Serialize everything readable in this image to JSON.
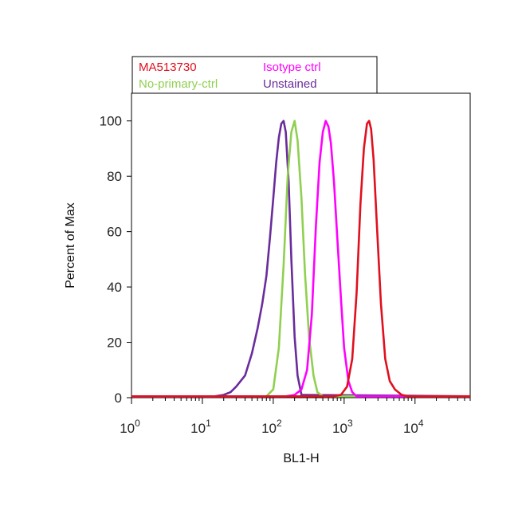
{
  "chart_data": {
    "type": "line",
    "xscale": "log",
    "xlim": [
      1,
      60000
    ],
    "ylim": [
      0,
      110
    ],
    "xlabel": "BL1-H",
    "ylabel": "Percent of Max",
    "legend_position": "top-left",
    "grid": false,
    "x_ticks": [
      {
        "value": 1,
        "base": "10",
        "exp": "0"
      },
      {
        "value": 10,
        "base": "10",
        "exp": "1"
      },
      {
        "value": 100,
        "base": "10",
        "exp": "2"
      },
      {
        "value": 1000,
        "base": "10",
        "exp": "3"
      },
      {
        "value": 10000,
        "base": "10",
        "exp": "4"
      }
    ],
    "y_ticks": [
      0,
      20,
      40,
      60,
      80,
      100
    ],
    "series": [
      {
        "name": "MA513730",
        "color": "#e0101e",
        "x": [
          1,
          700,
          900,
          1100,
          1300,
          1500,
          1700,
          1900,
          2100,
          2250,
          2400,
          2600,
          2900,
          3300,
          3800,
          4400,
          5200,
          6500,
          8000,
          60000
        ],
        "y": [
          0.5,
          0.5,
          1,
          4,
          14,
          38,
          70,
          90,
          99,
          100,
          97,
          86,
          62,
          34,
          14,
          6,
          3,
          1,
          0.5,
          0.5
        ]
      },
      {
        "name": "Isotype ctrl",
        "color": "#ff00ff",
        "x": [
          1,
          150,
          200,
          250,
          300,
          350,
          400,
          450,
          500,
          550,
          600,
          650,
          720,
          800,
          900,
          1000,
          1150,
          1300,
          1500,
          60000
        ],
        "y": [
          0.5,
          0.5,
          1,
          3,
          10,
          30,
          62,
          85,
          96,
          100,
          98,
          92,
          78,
          58,
          36,
          18,
          6,
          2,
          0.5,
          0.5
        ]
      },
      {
        "name": "No-primary-ctrl",
        "color": "#90d050",
        "x": [
          1,
          80,
          100,
          120,
          140,
          160,
          180,
          200,
          220,
          250,
          280,
          320,
          370,
          420,
          500,
          60000
        ],
        "y": [
          0.5,
          0.5,
          3,
          18,
          48,
          80,
          96,
          100,
          93,
          72,
          45,
          22,
          8,
          2,
          0.5,
          0.5
        ]
      },
      {
        "name": "Unstained",
        "color": "#6a2c9c",
        "x": [
          1,
          15,
          20,
          25,
          30,
          40,
          50,
          60,
          70,
          80,
          90,
          100,
          110,
          120,
          130,
          140,
          150,
          165,
          180,
          200,
          220,
          250,
          60000
        ],
        "y": [
          0.5,
          0.5,
          1,
          2,
          4,
          8,
          16,
          25,
          34,
          44,
          58,
          72,
          85,
          94,
          99,
          100,
          96,
          78,
          50,
          22,
          8,
          1,
          0.5
        ]
      }
    ]
  }
}
